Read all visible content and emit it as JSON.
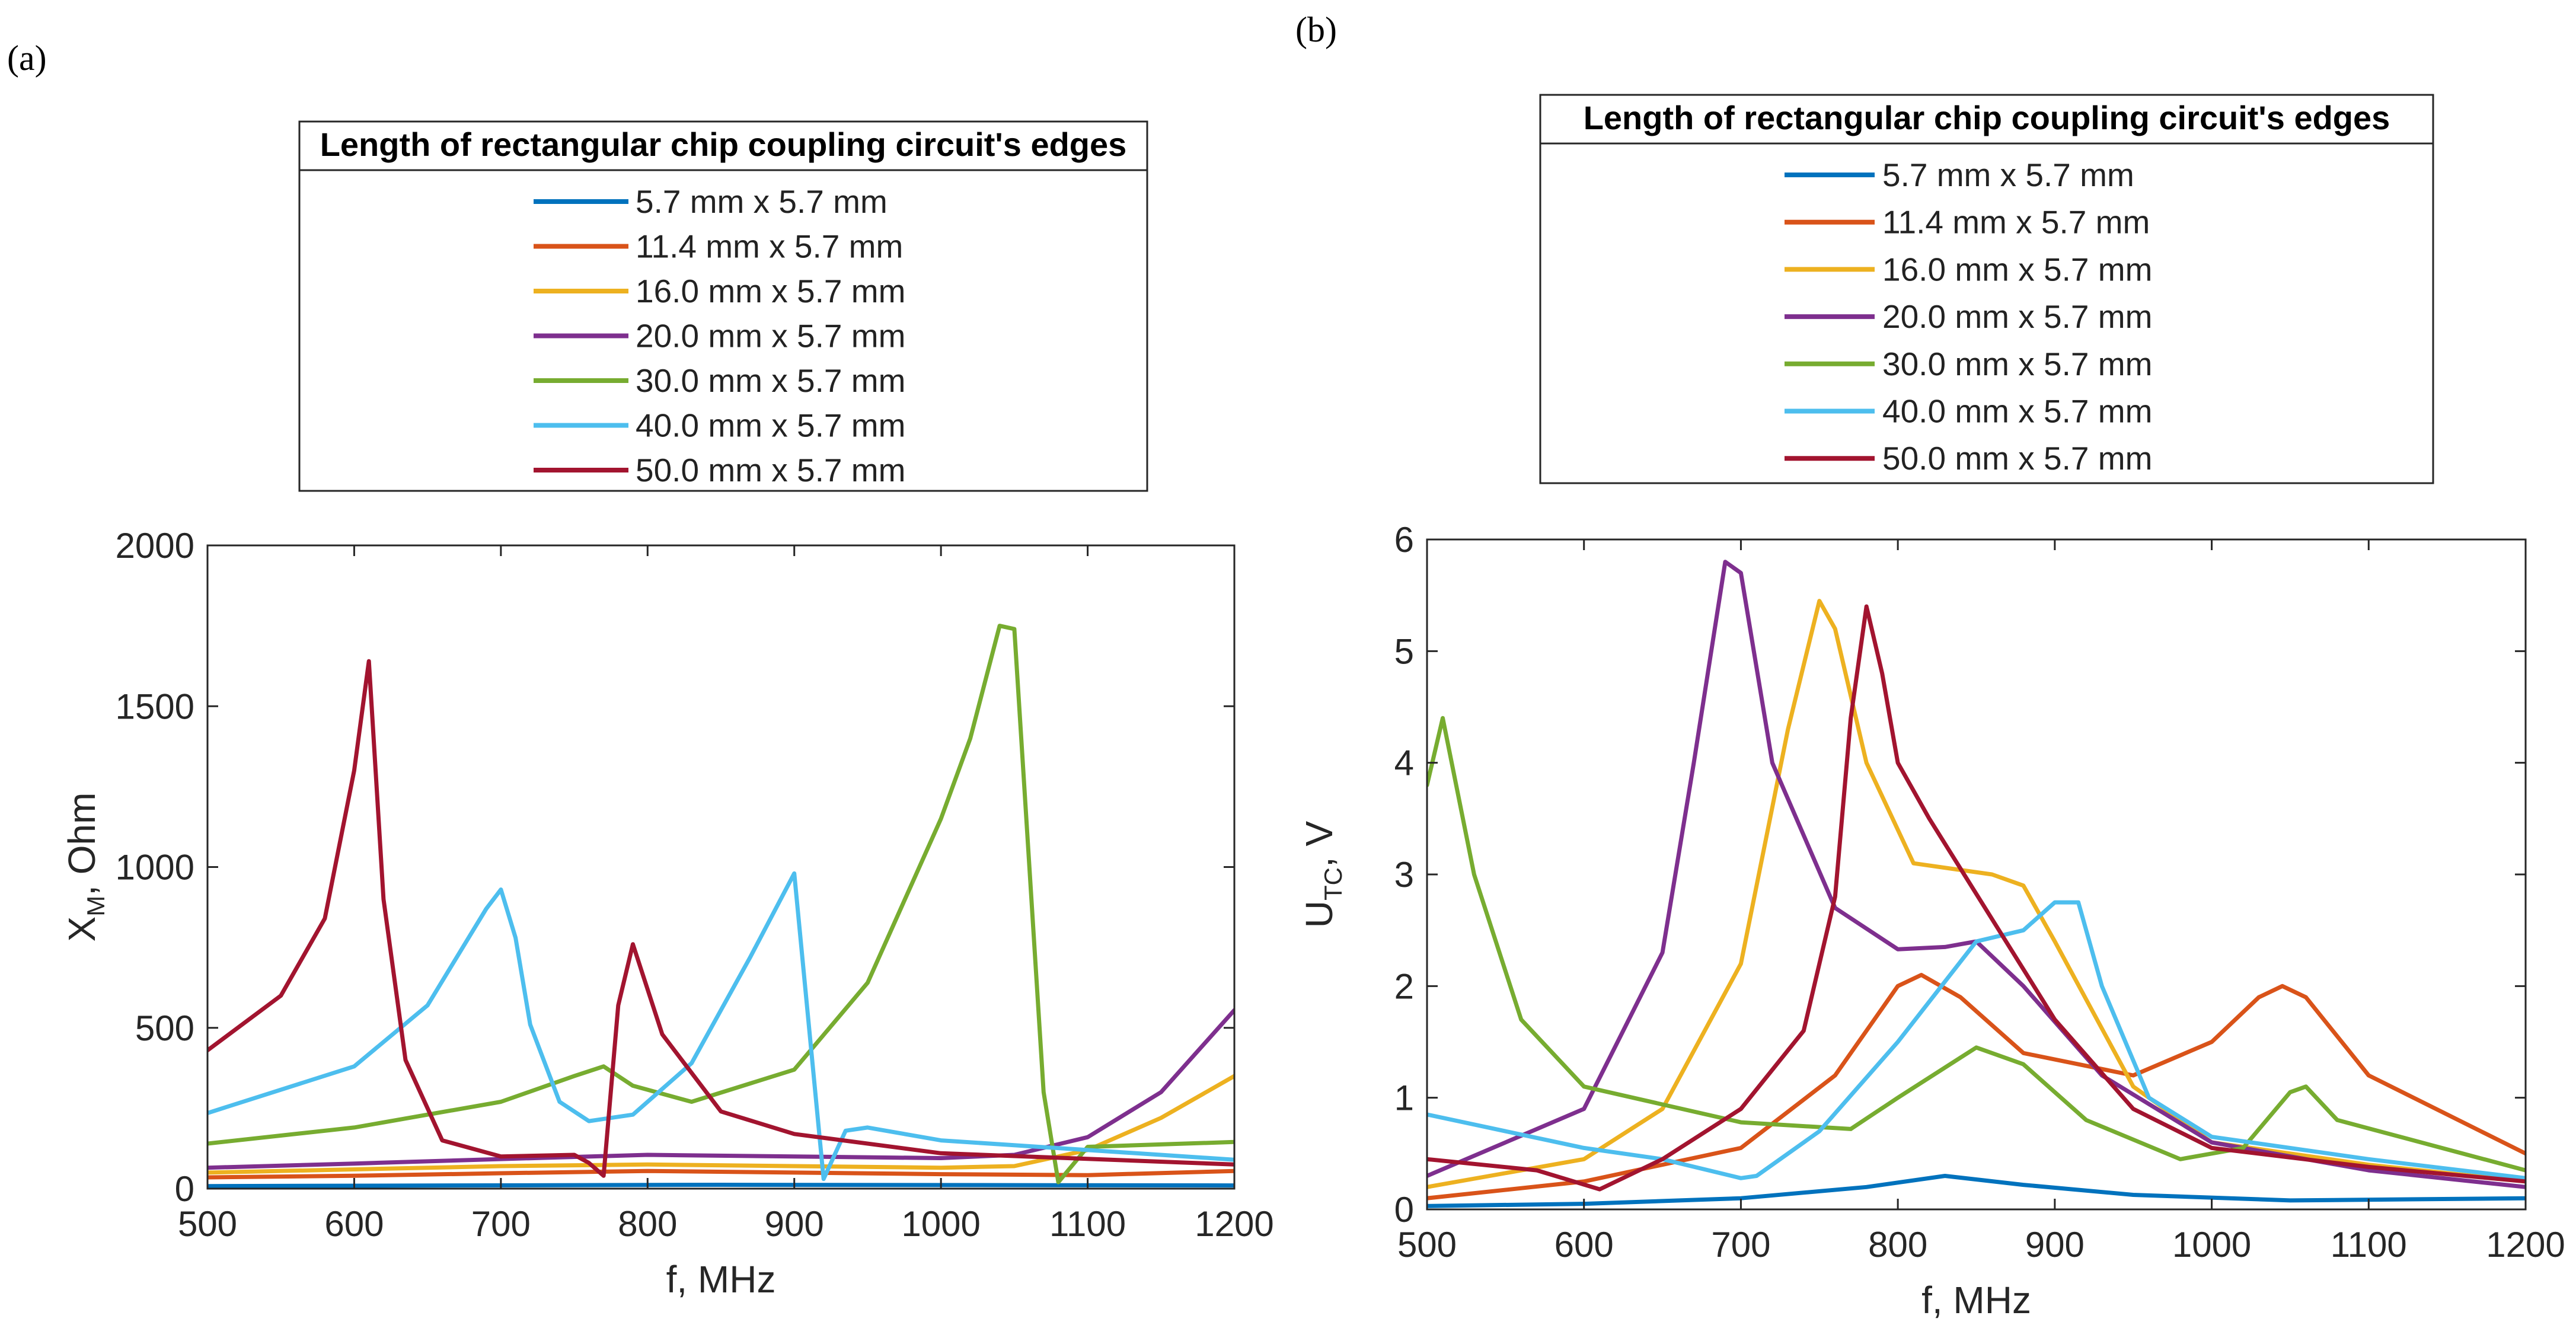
{
  "colors": [
    "#0072BD",
    "#D95319",
    "#EDB120",
    "#7E2F8E",
    "#77AC30",
    "#4DBEEE",
    "#A2142F"
  ],
  "chart_data": [
    {
      "panel_label": "(a)",
      "type": "line",
      "legend_title": "Length of rectangular chip coupling circuit's edges",
      "legend_entries": [
        "5.7 mm x 5.7 mm",
        "11.4 mm x 5.7 mm",
        "16.0 mm x 5.7 mm",
        "20.0 mm x 5.7 mm",
        "30.0 mm x 5.7 mm",
        "40.0 mm x 5.7 mm",
        "50.0 mm x 5.7 mm"
      ],
      "xlabel": "f, MHz",
      "ylabel_main": "X",
      "ylabel_sub": "M",
      "ylabel_rest": ", Ohm",
      "xlim": [
        500,
        1200
      ],
      "ylim": [
        0,
        2000
      ],
      "xticks": [
        500,
        600,
        700,
        800,
        900,
        1000,
        1100,
        1200
      ],
      "yticks": [
        0,
        500,
        1000,
        1500,
        2000
      ],
      "series": [
        {
          "name": "5.7 mm x 5.7 mm",
          "x": [
            500,
            850,
            1200
          ],
          "y": [
            8,
            12,
            10
          ]
        },
        {
          "name": "11.4 mm x 5.7 mm",
          "x": [
            500,
            600,
            700,
            800,
            900,
            1000,
            1100,
            1200
          ],
          "y": [
            35,
            40,
            48,
            55,
            50,
            45,
            42,
            55
          ]
        },
        {
          "name": "16.0 mm x 5.7 mm",
          "x": [
            500,
            600,
            700,
            800,
            900,
            1000,
            1050,
            1100,
            1150,
            1200
          ],
          "y": [
            50,
            60,
            70,
            75,
            70,
            65,
            70,
            120,
            220,
            350
          ]
        },
        {
          "name": "20.0 mm x 5.7 mm",
          "x": [
            500,
            600,
            700,
            800,
            900,
            1000,
            1050,
            1100,
            1150,
            1200
          ],
          "y": [
            65,
            78,
            92,
            105,
            100,
            95,
            105,
            160,
            300,
            555
          ]
        },
        {
          "name": "30.0 mm x 5.7 mm",
          "x": [
            500,
            600,
            700,
            750,
            770,
            790,
            830,
            900,
            950,
            1000,
            1020,
            1040,
            1050,
            1070,
            1080,
            1100,
            1200
          ],
          "y": [
            140,
            190,
            270,
            350,
            380,
            320,
            270,
            370,
            640,
            1150,
            1400,
            1750,
            1740,
            300,
            20,
            130,
            145
          ]
        },
        {
          "name": "40.0 mm x 5.7 mm",
          "x": [
            500,
            600,
            650,
            690,
            700,
            710,
            720,
            740,
            760,
            790,
            830,
            870,
            900,
            920,
            935,
            950,
            1000,
            1100,
            1200
          ],
          "y": [
            235,
            380,
            570,
            870,
            930,
            780,
            510,
            270,
            210,
            230,
            390,
            720,
            980,
            30,
            180,
            190,
            150,
            120,
            90
          ]
        },
        {
          "name": "50.0 mm x 5.7 mm",
          "x": [
            500,
            550,
            580,
            600,
            610,
            620,
            635,
            660,
            700,
            750,
            760,
            770,
            780,
            790,
            810,
            850,
            900,
            1000,
            1200
          ],
          "y": [
            430,
            600,
            840,
            1300,
            1640,
            900,
            400,
            150,
            100,
            105,
            80,
            40,
            570,
            760,
            480,
            240,
            170,
            110,
            75
          ]
        }
      ]
    },
    {
      "panel_label": "(b)",
      "type": "line",
      "legend_title": "Length of rectangular chip coupling circuit's edges",
      "legend_entries": [
        "5.7 mm x 5.7 mm",
        "11.4 mm x 5.7 mm",
        "16.0 mm x 5.7 mm",
        "20.0 mm x 5.7 mm",
        "30.0 mm x 5.7 mm",
        "40.0 mm x 5.7 mm",
        "50.0 mm x 5.7 mm"
      ],
      "xlabel": "f, MHz",
      "ylabel_main": "U",
      "ylabel_sub": "TC",
      "ylabel_rest": ", V",
      "xlim": [
        500,
        1200
      ],
      "ylim": [
        0,
        6
      ],
      "xticks": [
        500,
        600,
        700,
        800,
        900,
        1000,
        1100,
        1200
      ],
      "yticks": [
        0,
        1,
        2,
        3,
        4,
        5,
        6
      ],
      "series": [
        {
          "name": "5.7 mm x 5.7 mm",
          "x": [
            500,
            600,
            700,
            780,
            830,
            880,
            950,
            1050,
            1200
          ],
          "y": [
            0.03,
            0.05,
            0.1,
            0.2,
            0.3,
            0.22,
            0.13,
            0.08,
            0.1
          ]
        },
        {
          "name": "11.4 mm x 5.7 mm",
          "x": [
            500,
            600,
            700,
            760,
            800,
            815,
            840,
            880,
            950,
            1000,
            1030,
            1045,
            1060,
            1100,
            1200
          ],
          "y": [
            0.1,
            0.25,
            0.55,
            1.2,
            2.0,
            2.1,
            1.9,
            1.4,
            1.2,
            1.5,
            1.9,
            2.0,
            1.9,
            1.2,
            0.5
          ]
        },
        {
          "name": "16.0 mm x 5.7 mm",
          "x": [
            500,
            600,
            650,
            700,
            730,
            750,
            760,
            780,
            810,
            860,
            880,
            900,
            950,
            1000,
            1100,
            1200
          ],
          "y": [
            0.2,
            0.45,
            0.9,
            2.2,
            4.3,
            5.45,
            5.2,
            4.0,
            3.1,
            3.0,
            2.9,
            2.4,
            1.1,
            0.6,
            0.4,
            0.25
          ]
        },
        {
          "name": "20.0 mm x 5.7 mm",
          "x": [
            500,
            600,
            650,
            670,
            690,
            700,
            720,
            760,
            800,
            830,
            850,
            880,
            930,
            1000,
            1100,
            1200
          ],
          "y": [
            0.3,
            0.9,
            2.3,
            4.0,
            5.8,
            5.7,
            4.0,
            2.7,
            2.33,
            2.35,
            2.4,
            2.0,
            1.2,
            0.6,
            0.35,
            0.2
          ]
        },
        {
          "name": "30.0 mm x 5.7 mm",
          "x": [
            500,
            510,
            530,
            560,
            600,
            700,
            770,
            800,
            850,
            880,
            920,
            980,
            1020,
            1050,
            1060,
            1080,
            1200
          ],
          "y": [
            3.8,
            4.4,
            3.0,
            1.7,
            1.1,
            0.78,
            0.72,
            1.0,
            1.45,
            1.3,
            0.8,
            0.45,
            0.55,
            1.05,
            1.1,
            0.8,
            0.35
          ]
        },
        {
          "name": "40.0 mm x 5.7 mm",
          "x": [
            500,
            600,
            650,
            700,
            710,
            750,
            800,
            850,
            880,
            900,
            905,
            915,
            930,
            960,
            1000,
            1100,
            1200
          ],
          "y": [
            0.85,
            0.55,
            0.45,
            0.28,
            0.3,
            0.7,
            1.5,
            2.4,
            2.5,
            2.75,
            2.75,
            2.75,
            2.0,
            1.0,
            0.65,
            0.45,
            0.28
          ]
        },
        {
          "name": "50.0 mm x 5.7 mm",
          "x": [
            500,
            570,
            610,
            650,
            700,
            740,
            760,
            770,
            780,
            790,
            800,
            820,
            860,
            900,
            950,
            1000,
            1100,
            1200
          ],
          "y": [
            0.45,
            0.35,
            0.18,
            0.45,
            0.9,
            1.6,
            2.8,
            4.4,
            5.4,
            4.8,
            4.0,
            3.5,
            2.6,
            1.7,
            0.9,
            0.55,
            0.38,
            0.25
          ]
        }
      ]
    }
  ]
}
